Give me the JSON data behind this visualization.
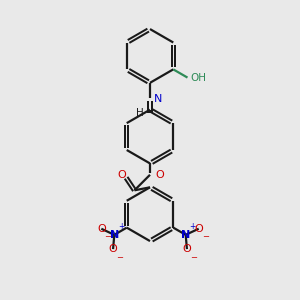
{
  "bg_color": "#e9e9e9",
  "black": "#1a1a1a",
  "blue": "#0000cc",
  "red": "#cc0000",
  "teal": "#2e8b57",
  "bond_lw": 1.6,
  "fig_w": 3.0,
  "fig_h": 3.0,
  "dpi": 100,
  "xlim": [
    0,
    10
  ],
  "ylim": [
    0,
    10
  ]
}
